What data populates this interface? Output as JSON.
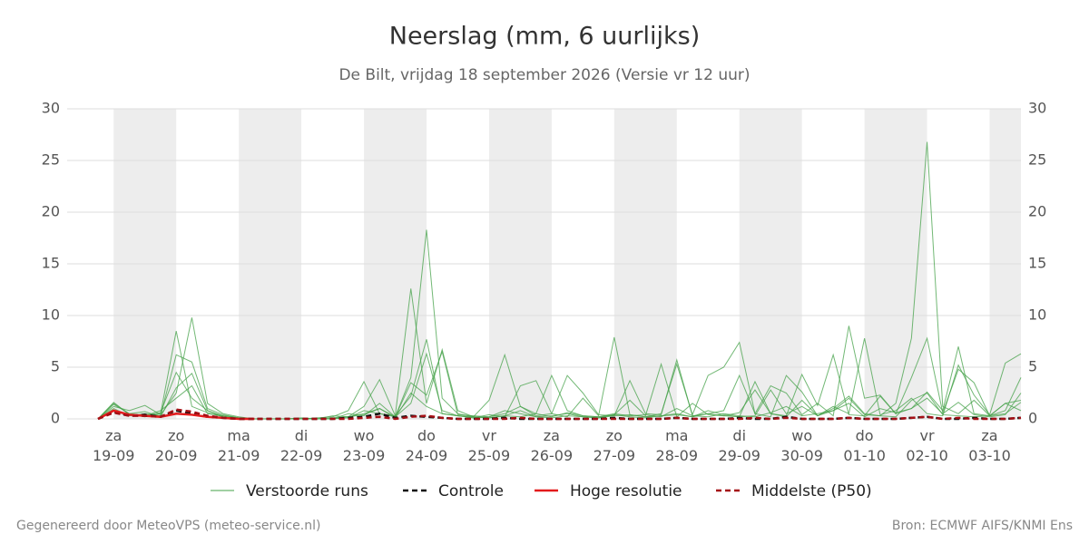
{
  "chart_data": {
    "type": "line",
    "title": "Neerslag (mm, 6 uurlijks)",
    "subtitle": "De Bilt, vrijdag 18 september 2026 (Versie vr 12 uur)",
    "categories": [
      null,
      "za\n19-09",
      null,
      null,
      null,
      "zo\n20-09",
      null,
      null,
      null,
      "ma\n21-09",
      null,
      null,
      null,
      "di\n22-09",
      null,
      null,
      null,
      "wo\n23-09",
      null,
      null,
      null,
      "do\n24-09",
      null,
      null,
      null,
      "vr\n25-09",
      null,
      null,
      null,
      "za\n26-09",
      null,
      null,
      null,
      "zo\n27-09",
      null,
      null,
      null,
      "ma\n28-09",
      null,
      null,
      null,
      "di\n29-09",
      null,
      null,
      null,
      "wo\n30-09",
      null,
      null,
      null,
      "do\n01-10",
      null,
      null,
      null,
      "vr\n02-10",
      null,
      null,
      null,
      "za\n03-10",
      null,
      null
    ],
    "ylim": [
      0,
      30
    ],
    "yticks": [
      0,
      5,
      10,
      15,
      20,
      25,
      30
    ],
    "y2lim": [
      0,
      30
    ],
    "y2ticks": [
      0,
      5,
      10,
      15,
      20,
      25,
      30
    ],
    "grid": true,
    "ensemble": {
      "name": "Verstoorde runs",
      "color": "#43a047",
      "members": [
        [
          0,
          1.5,
          0.5,
          0.3,
          0.6,
          4.5,
          2.0,
          0.8,
          0.3,
          0.1,
          0,
          0,
          0,
          0,
          0,
          0.1,
          0.2,
          0.5,
          1.0,
          0.2,
          4.0,
          18.3,
          2.0,
          0.5,
          0.2,
          0.1,
          0.3,
          0.8,
          0.2,
          0.1,
          0.3,
          0.2,
          0.1,
          0.4,
          0.2,
          0.1,
          0.3,
          0.5,
          0.2,
          0.8,
          0.4,
          0.2,
          0.3,
          2.8,
          0.5,
          1.2,
          0.3,
          0.8,
          2.0,
          0.4,
          0.3,
          1.5,
          7.8,
          26.8,
          1.2,
          0.5,
          1.8,
          0.3,
          0.5,
          1.6
        ],
        [
          0,
          1.2,
          0.8,
          1.3,
          0.4,
          2.5,
          9.8,
          1.5,
          0.5,
          0.2,
          0,
          0,
          0,
          0,
          0.1,
          0.2,
          0.8,
          3.6,
          0.5,
          0.3,
          12.6,
          1.5,
          6.7,
          0.8,
          0.2,
          1.8,
          6.2,
          1.2,
          0.3,
          0.5,
          4.2,
          2.5,
          0.4,
          0.3,
          3.7,
          0.5,
          0.4,
          5.7,
          0.3,
          0.5,
          0.8,
          4.2,
          0.5,
          3.2,
          2.5,
          0.4,
          1.5,
          0.3,
          9.0,
          2.0,
          2.3,
          0.5,
          1.0,
          2.6,
          0.8,
          7.0,
          0.5,
          0.3,
          1.5,
          0.8
        ],
        [
          0,
          0.8,
          0.4,
          0.2,
          0.5,
          8.5,
          1.2,
          0.6,
          0.2,
          0,
          0,
          0,
          0,
          0,
          0,
          0.3,
          0.2,
          1.2,
          3.8,
          0.3,
          2.2,
          7.7,
          0.5,
          0.3,
          0.1,
          0.4,
          0.2,
          3.2,
          3.7,
          0.5,
          0.2,
          2.0,
          0.3,
          7.9,
          0.4,
          0.2,
          0.5,
          5.3,
          0.4,
          4.2,
          5.0,
          7.4,
          0.5,
          0.2,
          4.2,
          2.6,
          0.3,
          1.2,
          0.5,
          7.8,
          0.4,
          0.8,
          2.0,
          0.5,
          0.3,
          5.2,
          2.3,
          0.4,
          5.4,
          6.3
        ],
        [
          0,
          1.0,
          0.3,
          0.5,
          0.3,
          6.2,
          5.5,
          1.0,
          0.4,
          0.1,
          0,
          0,
          0,
          0.1,
          0,
          0,
          0.5,
          0.3,
          1.5,
          0.2,
          1.5,
          6.3,
          0.8,
          0.3,
          0.2,
          0.1,
          0.3,
          0.2,
          0.5,
          4.2,
          0.8,
          0.3,
          0.2,
          0.4,
          1.8,
          0.3,
          5.3,
          0.2,
          1.5,
          0.4,
          0.3,
          0.6,
          2.8,
          0.5,
          0.3,
          4.3,
          1.3,
          6.2,
          0.4,
          0.3,
          2.2,
          0.5,
          4.0,
          7.8,
          0.6,
          4.8,
          3.5,
          0.3,
          0.8,
          4.0
        ],
        [
          0,
          1.4,
          0.5,
          0.7,
          0.2,
          3.0,
          4.4,
          0.8,
          0.2,
          0,
          0,
          0,
          0,
          0,
          0,
          0,
          0.2,
          0.4,
          1.0,
          0.1,
          2.5,
          1.2,
          0.5,
          0.3,
          0.1,
          0.2,
          0.8,
          0.5,
          0.2,
          0.3,
          0.5,
          0.2,
          0.1,
          0.3,
          0.4,
          0.2,
          0.3,
          0.4,
          0.2,
          0.5,
          0.3,
          0.2,
          3.6,
          0.5,
          0.2,
          1.8,
          0.3,
          1.0,
          2.2,
          0.5,
          0.3,
          0.2,
          1.8,
          2.5,
          0.4,
          0.3,
          0.2,
          0.3,
          1.5,
          1.8
        ],
        [
          0,
          1.6,
          0.4,
          0.3,
          0.8,
          2.0,
          3.2,
          0.5,
          0.3,
          0.1,
          0,
          0,
          0,
          0,
          0,
          0,
          0.1,
          0.8,
          0.5,
          0.2,
          3.5,
          2.3,
          6.5,
          0.4,
          0.3,
          0.2,
          0.5,
          1.2,
          0.5,
          0.2,
          0.6,
          0.3,
          0.2,
          0.5,
          0.3,
          0.4,
          0.2,
          1.0,
          0.3,
          0.2,
          0.5,
          0.3,
          0.2,
          0.6,
          1.2,
          0.3,
          0.5,
          0.8,
          1.5,
          0.2,
          1.0,
          0.6,
          1.0,
          2.0,
          0.5,
          1.6,
          0.4,
          0.2,
          0.4,
          2.5
        ]
      ]
    },
    "series": [
      {
        "name": "Controle",
        "color": "#111111",
        "dash": true,
        "values": [
          0,
          0.7,
          0.3,
          0.4,
          0.2,
          0.8,
          0.5,
          0.2,
          0.1,
          0,
          0,
          0,
          0,
          0,
          0,
          0,
          0.1,
          0.2,
          0.5,
          0.1,
          0.3,
          0.2,
          0.1,
          0,
          0,
          0,
          0.1,
          0,
          0,
          0,
          0,
          0,
          0,
          0.1,
          0,
          0,
          0,
          0.1,
          0,
          0,
          0,
          0.1,
          0,
          0,
          0.2,
          0,
          0,
          0,
          0.1,
          0,
          0,
          0,
          0.1,
          0.2,
          0,
          0,
          0.1,
          0,
          0,
          0.1
        ]
      },
      {
        "name": "Hoge resolutie",
        "color": "#e31a1c",
        "dash": false,
        "values": [
          0,
          0.8,
          0.4,
          0.3,
          0.2,
          0.5,
          0.4,
          0.2,
          0.1,
          0,
          0,
          null,
          null,
          null,
          null,
          null,
          null,
          null,
          null,
          null,
          null,
          null,
          null,
          null,
          null,
          null,
          null,
          null,
          null,
          null,
          null,
          null,
          null,
          null,
          null,
          null,
          null,
          null,
          null,
          null,
          null,
          null,
          null,
          null,
          null,
          null,
          null,
          null,
          null,
          null,
          null,
          null,
          null,
          null,
          null,
          null,
          null,
          null,
          null,
          null
        ]
      },
      {
        "name": "Middelste (P50)",
        "color": "#a50f15",
        "dash": true,
        "values": [
          0,
          0.6,
          0.3,
          0.3,
          0.2,
          0.9,
          0.7,
          0.3,
          0.1,
          0,
          0,
          0,
          0,
          0,
          0,
          0,
          0,
          0.1,
          0.2,
          0,
          0.2,
          0.3,
          0.1,
          0,
          0,
          0,
          0,
          0.1,
          0,
          0,
          0,
          0,
          0,
          0,
          0,
          0,
          0,
          0.1,
          0,
          0,
          0,
          0,
          0.1,
          0,
          0.1,
          0,
          0,
          0,
          0.1,
          0,
          0,
          0,
          0.1,
          0.2,
          0,
          0.1,
          0,
          0,
          0,
          0.1
        ]
      }
    ],
    "footer_left": "Gegenereerd door MeteoVPS (meteo-service.nl)",
    "footer_right": "Bron: ECMWF AIFS/KNMI Ens"
  }
}
